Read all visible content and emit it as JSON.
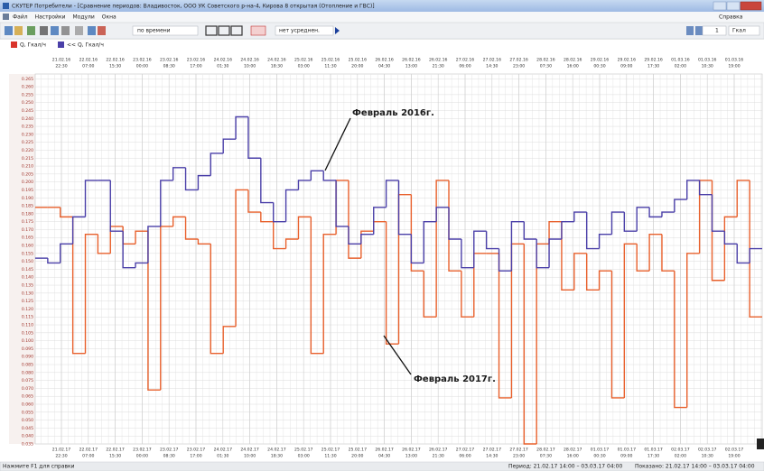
{
  "window": {
    "title": "СКУТЕР Потребители - [Сравнение периодов: Владивосток, ООО УК Советского р-на-4, Кирова 8 открытая (Отопление и ГВС)]",
    "menu": [
      "Файл",
      "Настройки",
      "Модули",
      "Окна"
    ],
    "toolbar": {
      "time_mode": "по времени",
      "averaging": "нет усреднен.",
      "help": "Справка",
      "step": "1",
      "units": "Гкал"
    },
    "status": {
      "hint": "Нажмите F1 для справки",
      "period": "Период: 21.02.17 14:00 – 03.03.17 04:00",
      "shown": "Показано: 21.02.17 14:00 – 03.03.17 04:00"
    }
  },
  "chart_data": {
    "type": "step",
    "annotations": [
      "Февраль 2016г.",
      "Февраль 2017г."
    ],
    "series": [
      {
        "name": "Q, Гкал/ч",
        "color": "#e8602c",
        "values": [
          0.184,
          0.184,
          0.178,
          0.092,
          0.167,
          0.155,
          0.172,
          0.161,
          0.169,
          0.069,
          0.172,
          0.178,
          0.164,
          0.161,
          0.092,
          0.109,
          0.195,
          0.181,
          0.175,
          0.158,
          0.164,
          0.178,
          0.092,
          0.167,
          0.201,
          0.152,
          0.169,
          0.175,
          0.098,
          0.192,
          0.144,
          0.115,
          0.201,
          0.144,
          0.115,
          0.155,
          0.155,
          0.064,
          0.161,
          0.035,
          0.161,
          0.175,
          0.132,
          0.155,
          0.132,
          0.144,
          0.064,
          0.161,
          0.144,
          0.167,
          0.144,
          0.058,
          0.155,
          0.201,
          0.138,
          0.178,
          0.201,
          0.115
        ]
      },
      {
        "name": "<< Q, Гкал/ч",
        "color": "#4a3fa8",
        "values": [
          0.152,
          0.149,
          0.161,
          0.178,
          0.201,
          0.201,
          0.169,
          0.146,
          0.149,
          0.172,
          0.201,
          0.209,
          0.195,
          0.204,
          0.218,
          0.227,
          0.241,
          0.215,
          0.187,
          0.175,
          0.195,
          0.201,
          0.207,
          0.201,
          0.172,
          0.161,
          0.167,
          0.184,
          0.201,
          0.167,
          0.149,
          0.175,
          0.184,
          0.164,
          0.146,
          0.169,
          0.158,
          0.144,
          0.175,
          0.164,
          0.146,
          0.164,
          0.175,
          0.181,
          0.158,
          0.167,
          0.181,
          0.169,
          0.184,
          0.178,
          0.181,
          0.189,
          0.201,
          0.192,
          0.169,
          0.161,
          0.149,
          0.158
        ]
      }
    ],
    "ylim": [
      0.035,
      0.268
    ],
    "yticks": [
      0.035,
      {
        "value": 0.04,
        "label": "0.040"
      },
      0.045,
      {
        "value": 0.05,
        "label": "0.050"
      },
      0.055,
      {
        "value": 0.06,
        "label": "0.060"
      },
      0.065,
      {
        "value": 0.07,
        "label": "0.070"
      },
      0.075,
      {
        "value": 0.08,
        "label": "0.080"
      },
      0.085,
      {
        "value": 0.09,
        "label": "0.090"
      },
      0.095,
      {
        "value": 0.1,
        "label": "0.100"
      },
      0.105,
      {
        "value": 0.11,
        "label": "0.110"
      },
      0.115,
      {
        "value": 0.12,
        "label": "0.120"
      },
      0.125,
      {
        "value": 0.13,
        "label": "0.130"
      },
      0.135,
      {
        "value": 0.14,
        "label": "0.140"
      },
      0.145,
      {
        "value": 0.15,
        "label": "0.150"
      },
      0.155,
      {
        "value": 0.16,
        "label": "0.160"
      },
      0.165,
      {
        "value": 0.17,
        "label": "0.170"
      },
      0.175,
      {
        "value": 0.18,
        "label": "0.180"
      },
      0.185,
      {
        "value": 0.19,
        "label": "0.190"
      },
      0.195,
      {
        "value": 0.2,
        "label": "0.200"
      },
      0.205,
      {
        "value": 0.21,
        "label": "0.210"
      },
      0.215,
      {
        "value": 0.22,
        "label": "0.220"
      },
      0.225,
      {
        "value": 0.23,
        "label": "0.230"
      },
      0.235,
      {
        "value": 0.24,
        "label": "0.240"
      },
      0.245,
      {
        "value": 0.25,
        "label": "0.250"
      },
      0.255,
      {
        "value": 0.26,
        "label": "0.260"
      },
      0.265
    ],
    "grid": true,
    "x_top_labels": [
      {
        "date": "21.02.16",
        "time": "22:30"
      },
      {
        "date": "22.02.16",
        "time": "07:00"
      },
      {
        "date": "22.02.16",
        "time": "15:30"
      },
      {
        "date": "23.02.16",
        "time": "00:00"
      },
      {
        "date": "23.02.16",
        "time": "08:30"
      },
      {
        "date": "23.02.16",
        "time": "17:00"
      },
      {
        "date": "24.02.16",
        "time": "01:30"
      },
      {
        "date": "24.02.16",
        "time": "10:00"
      },
      {
        "date": "24.02.16",
        "time": "18:30"
      },
      {
        "date": "25.02.16",
        "time": "03:00"
      },
      {
        "date": "25.02.16",
        "time": "11:30"
      },
      {
        "date": "25.02.16",
        "time": "20:00"
      },
      {
        "date": "26.02.16",
        "time": "04:30"
      },
      {
        "date": "26.02.16",
        "time": "13:00"
      },
      {
        "date": "26.02.16",
        "time": "21:30"
      },
      {
        "date": "27.02.16",
        "time": "06:00"
      },
      {
        "date": "27.02.16",
        "time": "14:30"
      },
      {
        "date": "27.02.16",
        "time": "23:00"
      },
      {
        "date": "28.02.16",
        "time": "07:30"
      },
      {
        "date": "28.02.16",
        "time": "16:00"
      },
      {
        "date": "29.02.16",
        "time": "00:30"
      },
      {
        "date": "29.02.16",
        "time": "09:00"
      },
      {
        "date": "29.02.16",
        "time": "17:30"
      },
      {
        "date": "01.03.16",
        "time": "02:00"
      },
      {
        "date": "01.03.16",
        "time": "10:30"
      },
      {
        "date": "01.03.16",
        "time": "19:00"
      }
    ],
    "x_bottom_labels": [
      {
        "date": "21.02.17",
        "time": "22:30"
      },
      {
        "date": "22.02.17",
        "time": "07:00"
      },
      {
        "date": "22.02.17",
        "time": "15:30"
      },
      {
        "date": "23.02.17",
        "time": "00:00"
      },
      {
        "date": "23.02.17",
        "time": "08:30"
      },
      {
        "date": "23.02.17",
        "time": "17:00"
      },
      {
        "date": "24.02.17",
        "time": "01:30"
      },
      {
        "date": "24.02.17",
        "time": "10:00"
      },
      {
        "date": "24.02.17",
        "time": "18:30"
      },
      {
        "date": "25.02.17",
        "time": "03:00"
      },
      {
        "date": "25.02.17",
        "time": "11:30"
      },
      {
        "date": "25.02.17",
        "time": "20:00"
      },
      {
        "date": "26.02.17",
        "time": "04:30"
      },
      {
        "date": "26.02.17",
        "time": "13:00"
      },
      {
        "date": "26.02.17",
        "time": "21:30"
      },
      {
        "date": "27.02.17",
        "time": "06:00"
      },
      {
        "date": "27.02.17",
        "time": "14:30"
      },
      {
        "date": "27.02.17",
        "time": "23:00"
      },
      {
        "date": "28.02.17",
        "time": "07:30"
      },
      {
        "date": "28.02.17",
        "time": "16:00"
      },
      {
        "date": "01.03.17",
        "time": "00:30"
      },
      {
        "date": "01.03.17",
        "time": "09:00"
      },
      {
        "date": "01.03.17",
        "time": "17:30"
      },
      {
        "date": "02.03.17",
        "time": "02:00"
      },
      {
        "date": "02.03.17",
        "time": "10:30"
      },
      {
        "date": "02.03.17",
        "time": "19:00"
      }
    ]
  }
}
